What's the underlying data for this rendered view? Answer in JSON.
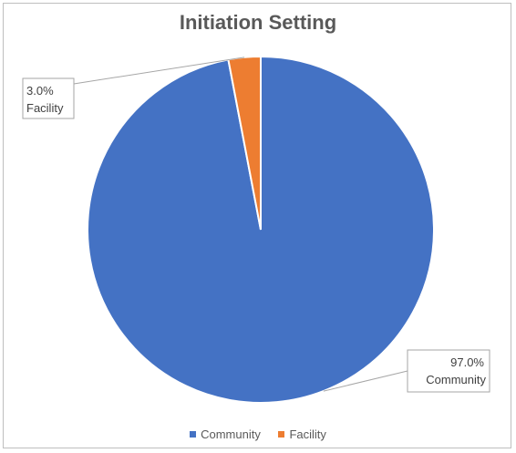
{
  "chart_data": {
    "type": "pie",
    "title": "Initiation Setting",
    "categories": [
      "Community",
      "Facility"
    ],
    "values": [
      97.0,
      3.0
    ],
    "colors": [
      "#4472c4",
      "#ed7d31"
    ],
    "data_labels": [
      {
        "percent": "97.0%",
        "category": "Community"
      },
      {
        "percent": "3.0%",
        "category": "Facility"
      }
    ],
    "legend_position": "bottom"
  }
}
